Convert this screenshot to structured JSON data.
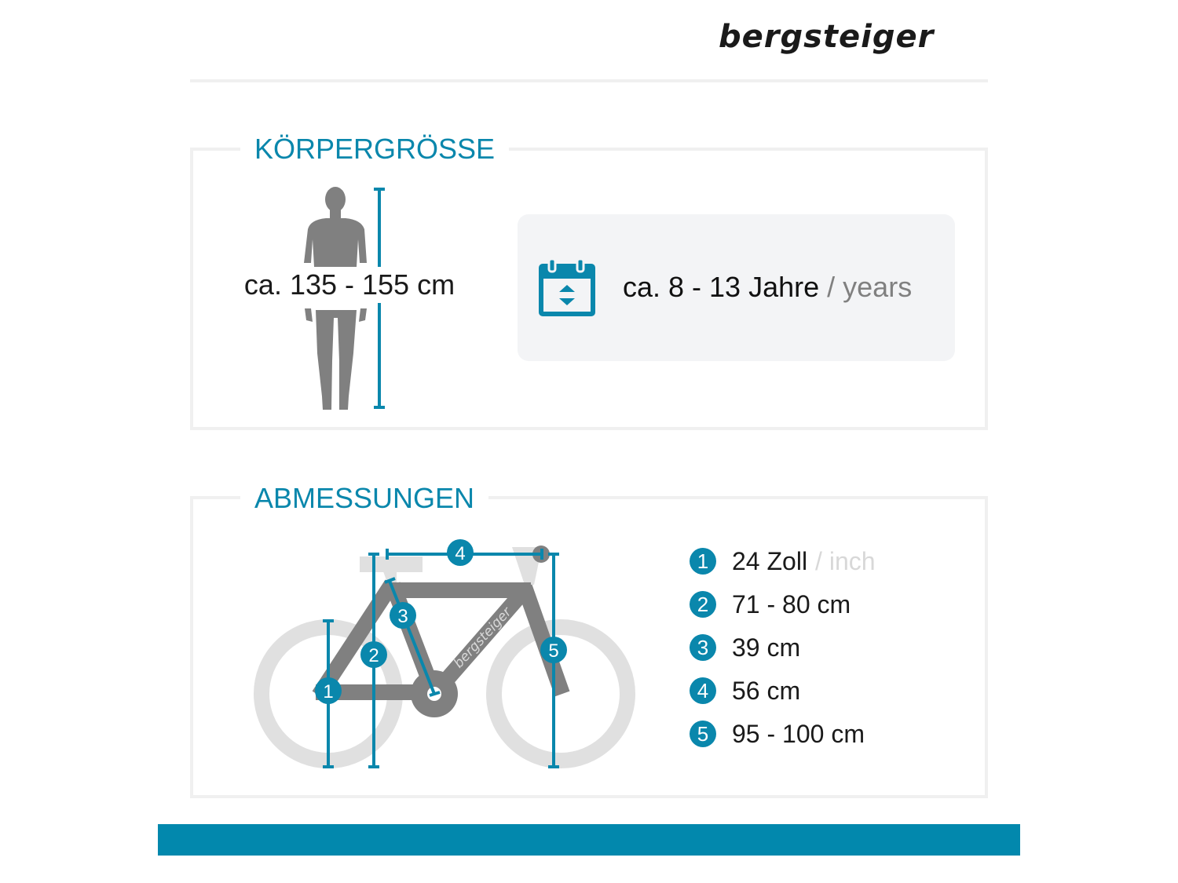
{
  "brand": {
    "logo": "bergsteiger"
  },
  "colors": {
    "accent": "#0a87ac",
    "frame": "#808080",
    "wheel": "#e0e0e0",
    "footer_bar": "#0288ad"
  },
  "height_section": {
    "title": "KÖRPERGRÖSSE",
    "height_range": "ca. 135 - 155 cm",
    "age_icon": "calendar-icon",
    "age_main": "ca. 8 - 13 Jahre",
    "age_sub": "/ years"
  },
  "dimensions_section": {
    "title": "ABMESSUNGEN",
    "frame_text": "bergsteiger",
    "specs": [
      {
        "num": "1",
        "value": "24 Zoll",
        "sub": "/ inch"
      },
      {
        "num": "2",
        "value": "71 - 80 cm"
      },
      {
        "num": "3",
        "value": "39 cm"
      },
      {
        "num": "4",
        "value": "56 cm"
      },
      {
        "num": "5",
        "value": "95 - 100 cm"
      }
    ]
  }
}
